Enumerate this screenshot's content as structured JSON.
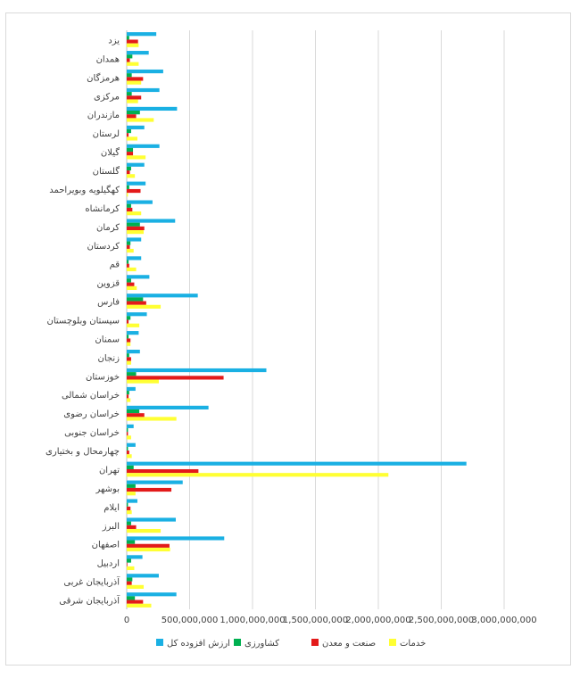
{
  "chart_data": {
    "type": "bar",
    "orientation": "horizontal",
    "title": "",
    "xlabel": "",
    "ylabel": "",
    "xlim": [
      0,
      3000000000
    ],
    "x_ticks": [
      "0",
      "500,000,000",
      "1,000,000,000",
      "1,500,000,000",
      "2,000,000,000",
      "2,500,000,000",
      "3,000,000,000"
    ],
    "x_tick_values": [
      0,
      500000000,
      1000000000,
      1500000000,
      2000000000,
      2500000000,
      3000000000
    ],
    "grid": "vertical",
    "legend_position": "bottom",
    "categories": [
      "آذربایجان شرقی",
      "آذربایجان غربی",
      "اردبیل",
      "اصفهان",
      "البرز",
      "ایلام",
      "بوشهر",
      "تهران",
      "چهارمحال و بختیاری",
      "خراسان جنوبی",
      "خراسان رضوی",
      "خراسان شمالی",
      "خوزستان",
      "زنجان",
      "سمنان",
      "سیستان وبلوچستان",
      "فارس",
      "قزوین",
      "قم",
      "کردستان",
      "کرمان",
      "کرمانشاه",
      "کهگیلویه وبویراحمد",
      "گلستان",
      "گیلان",
      "لرستان",
      "مازندران",
      "مرکزی",
      "هرمزگان",
      "همدان",
      "یزد"
    ],
    "series": [
      {
        "name": "ارزش افزوده کل",
        "color": "#1ab0e3",
        "values": [
          395000000,
          255000000,
          125000000,
          775000000,
          390000000,
          85000000,
          445000000,
          2700000000,
          70000000,
          55000000,
          650000000,
          70000000,
          1110000000,
          105000000,
          95000000,
          160000000,
          565000000,
          180000000,
          115000000,
          115000000,
          385000000,
          205000000,
          150000000,
          140000000,
          260000000,
          140000000,
          400000000,
          260000000,
          290000000,
          175000000,
          235000000
        ]
      },
      {
        "name": "کشاورزی",
        "color": "#00b050",
        "values": [
          65000000,
          45000000,
          35000000,
          65000000,
          35000000,
          10000000,
          70000000,
          55000000,
          10000000,
          10000000,
          100000000,
          20000000,
          75000000,
          20000000,
          15000000,
          30000000,
          130000000,
          35000000,
          15000000,
          30000000,
          105000000,
          35000000,
          20000000,
          35000000,
          50000000,
          35000000,
          105000000,
          40000000,
          40000000,
          45000000,
          20000000
        ]
      },
      {
        "name": "صنعت و معدن",
        "color": "#e31a1a",
        "values": [
          130000000,
          40000000,
          5000000,
          340000000,
          75000000,
          30000000,
          355000000,
          570000000,
          20000000,
          10000000,
          140000000,
          15000000,
          770000000,
          35000000,
          30000000,
          15000000,
          155000000,
          60000000,
          20000000,
          25000000,
          140000000,
          45000000,
          110000000,
          25000000,
          50000000,
          15000000,
          75000000,
          115000000,
          130000000,
          25000000,
          90000000
        ]
      },
      {
        "name": "خدمات",
        "color": "#ffff33",
        "values": [
          195000000,
          135000000,
          60000000,
          345000000,
          270000000,
          40000000,
          70000000,
          2080000000,
          40000000,
          35000000,
          395000000,
          30000000,
          255000000,
          35000000,
          30000000,
          100000000,
          270000000,
          80000000,
          75000000,
          55000000,
          135000000,
          115000000,
          10000000,
          65000000,
          150000000,
          85000000,
          215000000,
          90000000,
          115000000,
          95000000,
          95000000
        ]
      }
    ]
  }
}
